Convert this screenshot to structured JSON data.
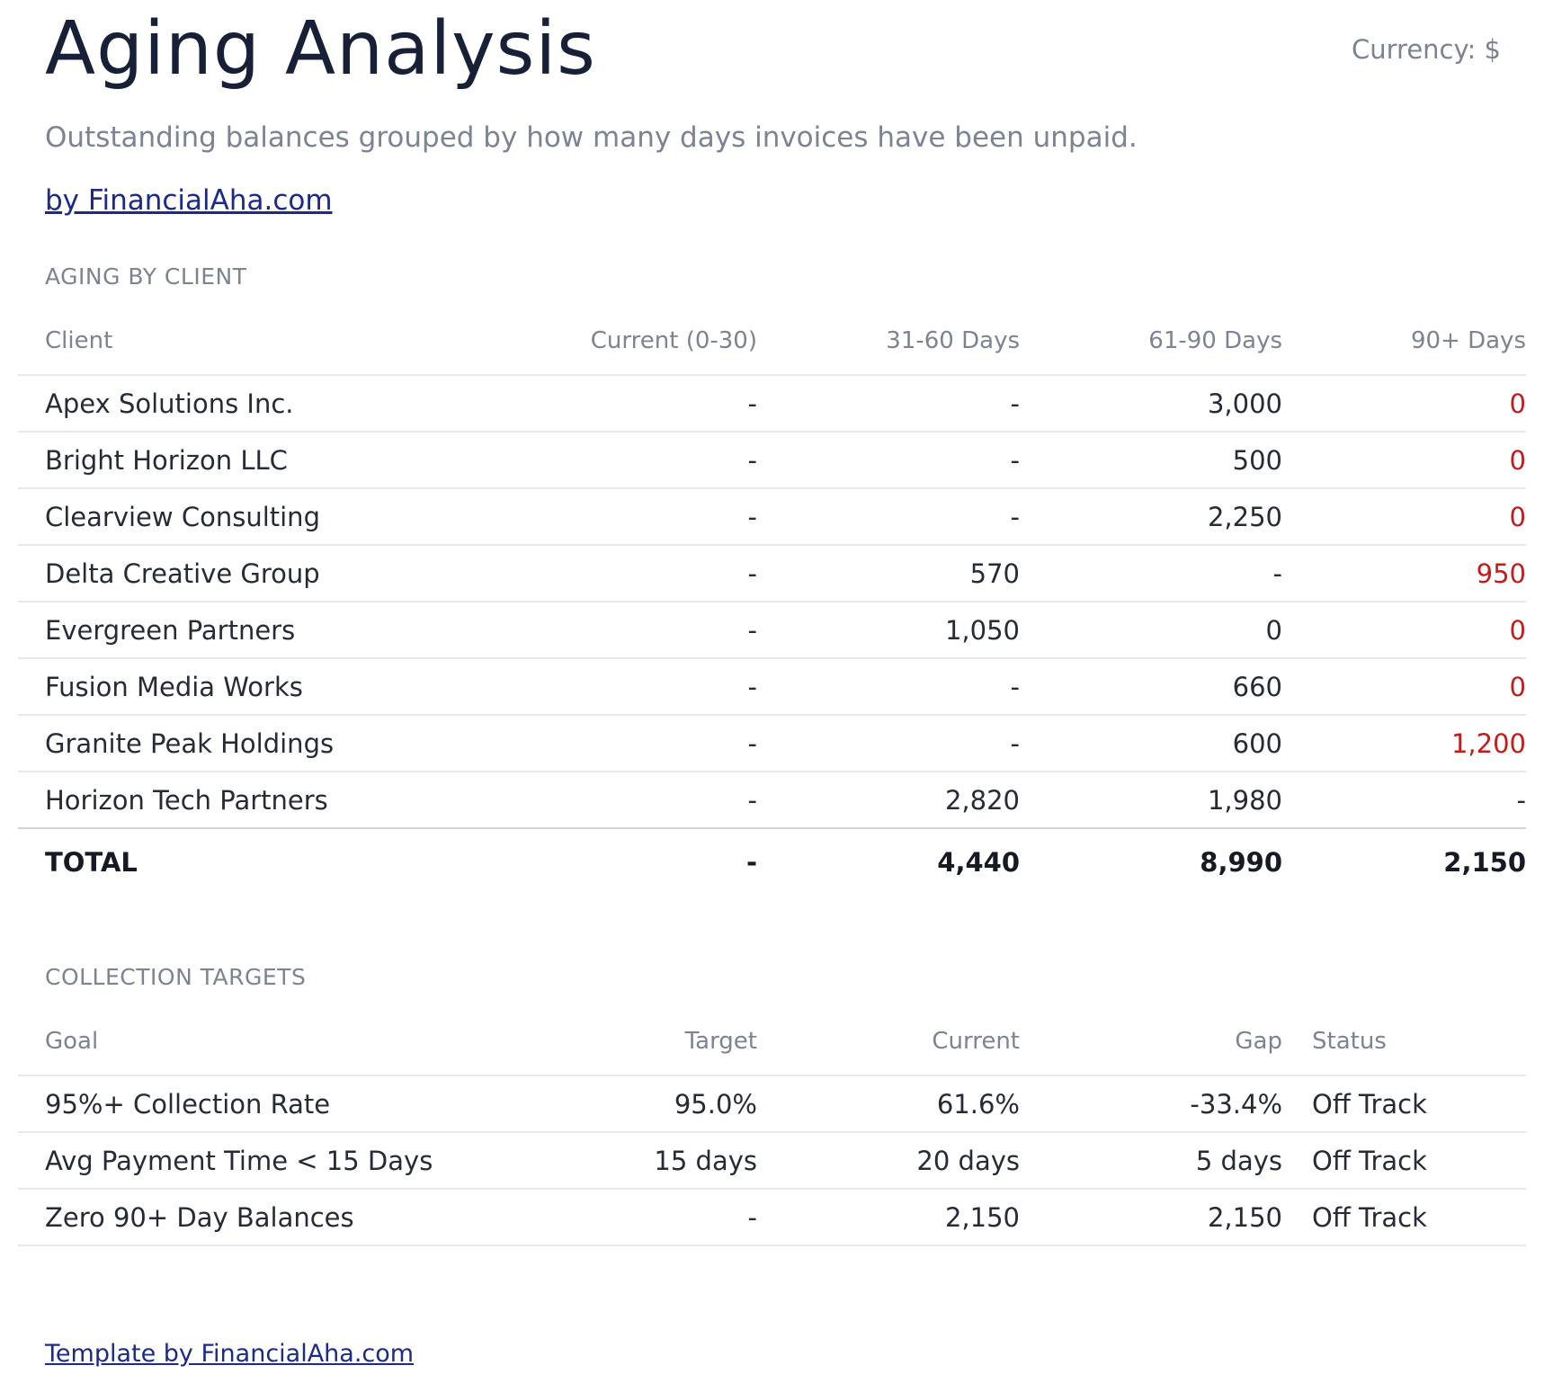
{
  "header": {
    "title": "Aging Analysis",
    "currency": "Currency: $",
    "subtitle": "Outstanding balances grouped by how many days invoices have been unpaid.",
    "byline": "by FinancialAha.com"
  },
  "aging": {
    "section_label": "AGING BY CLIENT",
    "columns": [
      "Client",
      "Current (0-30)",
      "31-60 Days",
      "61-90 Days",
      "90+ Days"
    ],
    "rows": [
      {
        "client": "Apex Solutions Inc.",
        "current": "-",
        "d31_60": "-",
        "d61_90": "3,000",
        "d90_plus": "0"
      },
      {
        "client": "Bright Horizon LLC",
        "current": "-",
        "d31_60": "-",
        "d61_90": "500",
        "d90_plus": "0"
      },
      {
        "client": "Clearview Consulting",
        "current": "-",
        "d31_60": "-",
        "d61_90": "2,250",
        "d90_plus": "0"
      },
      {
        "client": "Delta Creative Group",
        "current": "-",
        "d31_60": "570",
        "d61_90": "-",
        "d90_plus": "950"
      },
      {
        "client": "Evergreen Partners",
        "current": "-",
        "d31_60": "1,050",
        "d61_90": "0",
        "d90_plus": "0"
      },
      {
        "client": "Fusion Media Works",
        "current": "-",
        "d31_60": "-",
        "d61_90": "660",
        "d90_plus": "0"
      },
      {
        "client": "Granite Peak Holdings",
        "current": "-",
        "d31_60": "-",
        "d61_90": "600",
        "d90_plus": "1,200"
      },
      {
        "client": "Horizon Tech Partners",
        "current": "-",
        "d31_60": "2,820",
        "d61_90": "1,980",
        "d90_plus": "-"
      }
    ],
    "total": {
      "label": "TOTAL",
      "current": "-",
      "d31_60": "4,440",
      "d61_90": "8,990",
      "d90_plus": "2,150"
    }
  },
  "targets": {
    "section_label": "COLLECTION TARGETS",
    "columns": [
      "Goal",
      "Target",
      "Current",
      "Gap",
      "Status"
    ],
    "rows": [
      {
        "goal": "95%+ Collection Rate",
        "target": "95.0%",
        "current": "61.6%",
        "gap": "-33.4%",
        "status": "Off Track"
      },
      {
        "goal": "Avg Payment Time < 15 Days",
        "target": "15 days",
        "current": "20 days",
        "gap": "5 days",
        "status": "Off Track"
      },
      {
        "goal": "Zero 90+ Day Balances",
        "target": "-",
        "current": "2,150",
        "gap": "2,150",
        "status": "Off Track"
      }
    ]
  },
  "footer": {
    "link": "Template by FinancialAha.com"
  },
  "colors": {
    "title": "#172036",
    "muted": "#7c8393",
    "link": "#1c2a88",
    "overdue_red": "#c21d1d"
  }
}
